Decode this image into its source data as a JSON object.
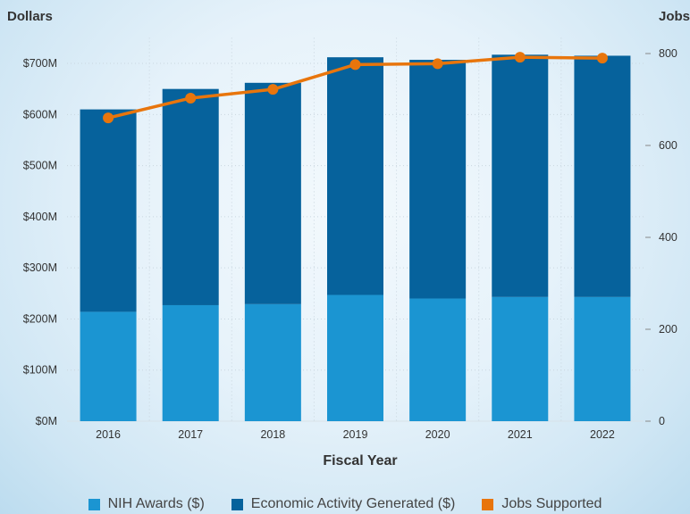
{
  "chart_data": {
    "type": "bar",
    "stacked": true,
    "xlabel": "Fiscal Year",
    "ylabel_left": "Dollars",
    "ylabel_right": "Jobs",
    "categories": [
      "2016",
      "2017",
      "2018",
      "2019",
      "2020",
      "2021",
      "2022"
    ],
    "series": [
      {
        "name": "NIH Awards ($)",
        "type": "bar",
        "axis": "left",
        "color": "#1b95d2",
        "values": [
          214,
          227,
          229,
          247,
          240,
          243,
          243
        ]
      },
      {
        "name": "Economic Activity Generated ($)",
        "type": "bar",
        "axis": "left",
        "color": "#06629c",
        "values": [
          396,
          423,
          433,
          465,
          467,
          474,
          472
        ]
      },
      {
        "name": "Jobs Supported",
        "type": "line",
        "axis": "right",
        "color": "#e8750c",
        "values": [
          660,
          703,
          722,
          776,
          778,
          792,
          790
        ]
      }
    ],
    "left_axis": {
      "ylim": [
        0,
        750
      ],
      "ticks": [
        0,
        100,
        200,
        300,
        400,
        500,
        600,
        700
      ],
      "tick_labels": [
        "$0M",
        "$100M",
        "$200M",
        "$300M",
        "$400M",
        "$500M",
        "$600M",
        "$700M"
      ]
    },
    "right_axis": {
      "ylim": [
        0,
        800
      ],
      "ticks": [
        0,
        200,
        400,
        600,
        800
      ],
      "tick_labels": [
        "0",
        "200",
        "400",
        "600",
        "800"
      ]
    },
    "grid": true,
    "legend_position": "bottom"
  }
}
